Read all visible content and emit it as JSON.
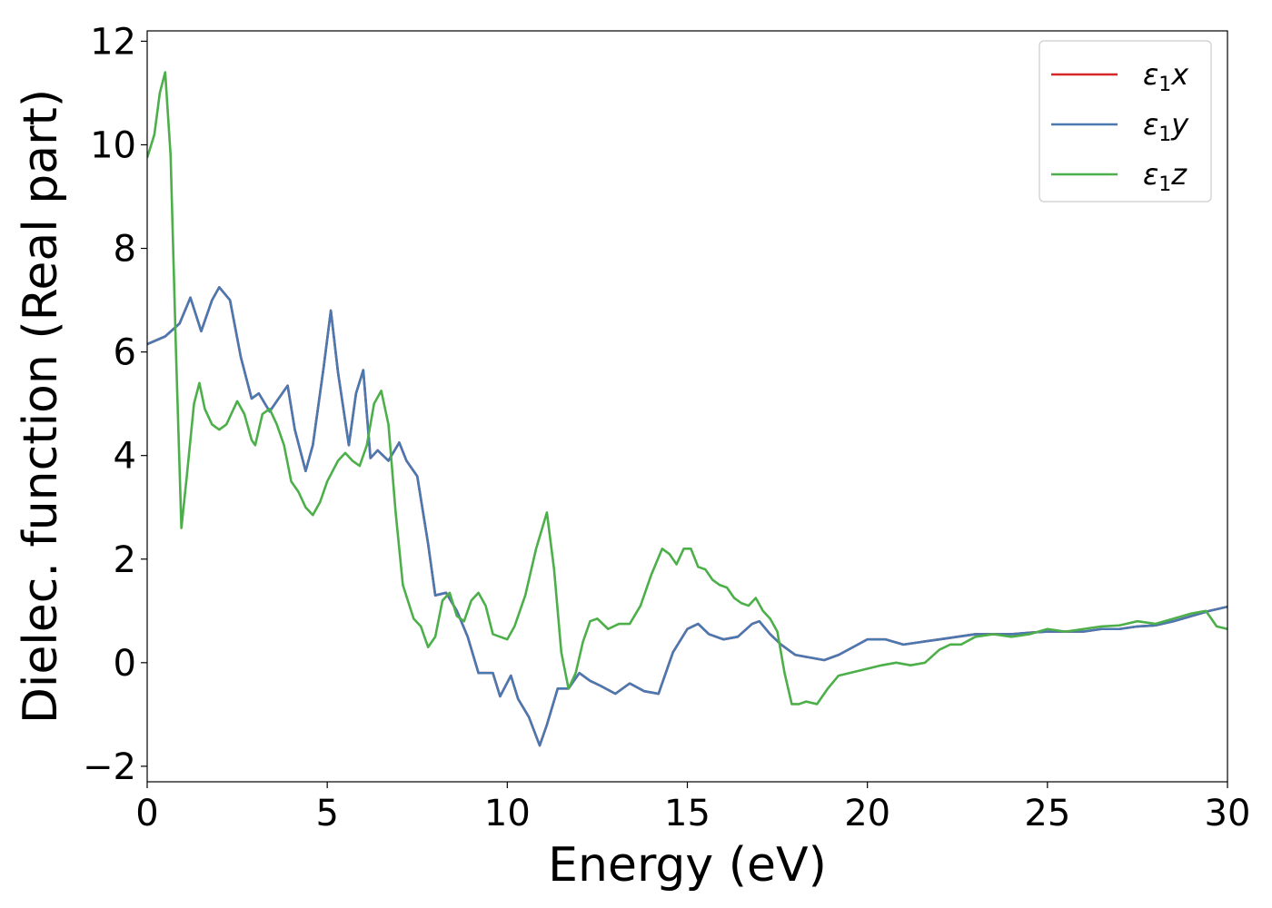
{
  "chart_data": {
    "type": "line",
    "title": "",
    "xlabel": "Energy (eV)",
    "ylabel": "Dielec. function (Real part)",
    "xlim": [
      0,
      30
    ],
    "ylim": [
      -2.3,
      12.2
    ],
    "xticks": [
      0,
      5,
      10,
      15,
      20,
      25,
      30
    ],
    "xtick_labels": [
      "0",
      "5",
      "10",
      "15",
      "20",
      "25",
      "30"
    ],
    "yticks": [
      -2,
      0,
      2,
      4,
      6,
      8,
      10,
      12
    ],
    "ytick_labels": [
      "−2",
      "0",
      "2",
      "4",
      "6",
      "8",
      "10",
      "12"
    ],
    "grid": false,
    "legend_position": "top-right",
    "series": [
      {
        "name": "ε1x",
        "legend_symbol": "ε",
        "legend_sub": "1",
        "legend_var": "x",
        "color": "#d62728",
        "x": [
          0,
          0.5,
          0.9,
          1.2,
          1.5,
          1.8,
          2.0,
          2.3,
          2.6,
          2.9,
          3.1,
          3.4,
          3.6,
          3.9,
          4.1,
          4.4,
          4.6,
          4.9,
          5.1,
          5.3,
          5.6,
          5.8,
          6.0,
          6.2,
          6.4,
          6.7,
          7.0,
          7.2,
          7.5,
          7.8,
          8.0,
          8.3,
          8.6,
          8.9,
          9.2,
          9.6,
          9.8,
          10.1,
          10.3,
          10.6,
          10.9,
          11.1,
          11.4,
          11.7,
          12.0,
          12.3,
          12.6,
          13.0,
          13.4,
          13.8,
          14.2,
          14.6,
          15.0,
          15.3,
          15.6,
          16.0,
          16.4,
          16.8,
          17.0,
          17.3,
          17.6,
          18.0,
          18.4,
          18.8,
          19.2,
          19.6,
          20.0,
          20.5,
          21.0,
          21.5,
          22.0,
          22.5,
          23.0,
          23.5,
          24.0,
          24.5,
          25.0,
          25.5,
          26.0,
          26.5,
          27.0,
          27.5,
          28.0,
          28.5,
          29.0,
          29.5,
          30.0
        ],
        "y": [
          6.15,
          6.3,
          6.55,
          7.05,
          6.4,
          7.0,
          7.25,
          7.0,
          5.9,
          5.1,
          5.2,
          4.85,
          5.05,
          5.35,
          4.5,
          3.7,
          4.2,
          5.7,
          6.8,
          5.6,
          4.2,
          5.2,
          5.65,
          3.95,
          4.1,
          3.9,
          4.25,
          3.9,
          3.6,
          2.3,
          1.3,
          1.35,
          1.0,
          0.5,
          -0.2,
          -0.2,
          -0.65,
          -0.25,
          -0.7,
          -1.05,
          -1.6,
          -1.2,
          -0.5,
          -0.5,
          -0.2,
          -0.35,
          -0.45,
          -0.6,
          -0.4,
          -0.55,
          -0.6,
          0.2,
          0.65,
          0.75,
          0.55,
          0.45,
          0.5,
          0.75,
          0.8,
          0.55,
          0.35,
          0.15,
          0.1,
          0.05,
          0.15,
          0.3,
          0.45,
          0.45,
          0.35,
          0.4,
          0.45,
          0.5,
          0.55,
          0.55,
          0.55,
          0.58,
          0.6,
          0.6,
          0.6,
          0.65,
          0.65,
          0.7,
          0.72,
          0.8,
          0.9,
          1.0,
          1.08
        ]
      },
      {
        "name": "ε1y",
        "legend_symbol": "ε",
        "legend_sub": "1",
        "legend_var": "y",
        "color": "#4a78b0",
        "x": [
          0,
          0.5,
          0.9,
          1.2,
          1.5,
          1.8,
          2.0,
          2.3,
          2.6,
          2.9,
          3.1,
          3.4,
          3.6,
          3.9,
          4.1,
          4.4,
          4.6,
          4.9,
          5.1,
          5.3,
          5.6,
          5.8,
          6.0,
          6.2,
          6.4,
          6.7,
          7.0,
          7.2,
          7.5,
          7.8,
          8.0,
          8.3,
          8.6,
          8.9,
          9.2,
          9.6,
          9.8,
          10.1,
          10.3,
          10.6,
          10.9,
          11.1,
          11.4,
          11.7,
          12.0,
          12.3,
          12.6,
          13.0,
          13.4,
          13.8,
          14.2,
          14.6,
          15.0,
          15.3,
          15.6,
          16.0,
          16.4,
          16.8,
          17.0,
          17.3,
          17.6,
          18.0,
          18.4,
          18.8,
          19.2,
          19.6,
          20.0,
          20.5,
          21.0,
          21.5,
          22.0,
          22.5,
          23.0,
          23.5,
          24.0,
          24.5,
          25.0,
          25.5,
          26.0,
          26.5,
          27.0,
          27.5,
          28.0,
          28.5,
          29.0,
          29.5,
          30.0
        ],
        "y": [
          6.15,
          6.3,
          6.55,
          7.05,
          6.4,
          7.0,
          7.25,
          7.0,
          5.9,
          5.1,
          5.2,
          4.85,
          5.05,
          5.35,
          4.5,
          3.7,
          4.2,
          5.7,
          6.8,
          5.6,
          4.2,
          5.2,
          5.65,
          3.95,
          4.1,
          3.9,
          4.25,
          3.9,
          3.6,
          2.3,
          1.3,
          1.35,
          1.0,
          0.5,
          -0.2,
          -0.2,
          -0.65,
          -0.25,
          -0.7,
          -1.05,
          -1.6,
          -1.2,
          -0.5,
          -0.5,
          -0.2,
          -0.35,
          -0.45,
          -0.6,
          -0.4,
          -0.55,
          -0.6,
          0.2,
          0.65,
          0.75,
          0.55,
          0.45,
          0.5,
          0.75,
          0.8,
          0.55,
          0.35,
          0.15,
          0.1,
          0.05,
          0.15,
          0.3,
          0.45,
          0.45,
          0.35,
          0.4,
          0.45,
          0.5,
          0.55,
          0.55,
          0.55,
          0.58,
          0.6,
          0.6,
          0.6,
          0.65,
          0.65,
          0.7,
          0.72,
          0.8,
          0.9,
          1.0,
          1.08
        ]
      },
      {
        "name": "ε1z",
        "legend_symbol": "ε",
        "legend_sub": "1",
        "legend_var": "z",
        "color": "#4daf4a",
        "x": [
          0,
          0.2,
          0.35,
          0.5,
          0.65,
          0.8,
          0.95,
          1.1,
          1.3,
          1.45,
          1.6,
          1.8,
          2.0,
          2.2,
          2.5,
          2.7,
          2.9,
          3.0,
          3.2,
          3.4,
          3.6,
          3.8,
          4.0,
          4.2,
          4.4,
          4.6,
          4.8,
          5.0,
          5.3,
          5.5,
          5.7,
          5.9,
          6.1,
          6.3,
          6.5,
          6.7,
          6.9,
          7.1,
          7.4,
          7.6,
          7.8,
          8.0,
          8.2,
          8.4,
          8.6,
          8.8,
          9.0,
          9.2,
          9.4,
          9.6,
          9.8,
          10.0,
          10.2,
          10.5,
          10.8,
          11.1,
          11.3,
          11.5,
          11.7,
          11.9,
          12.1,
          12.3,
          12.5,
          12.8,
          13.1,
          13.4,
          13.7,
          14.0,
          14.3,
          14.5,
          14.7,
          14.9,
          15.1,
          15.3,
          15.5,
          15.7,
          15.9,
          16.1,
          16.3,
          16.5,
          16.7,
          16.9,
          17.1,
          17.3,
          17.5,
          17.7,
          17.9,
          18.1,
          18.3,
          18.6,
          18.9,
          19.2,
          19.5,
          19.8,
          20.1,
          20.4,
          20.8,
          21.2,
          21.6,
          22.0,
          22.3,
          22.6,
          23.0,
          23.5,
          24.0,
          24.5,
          25.0,
          25.5,
          26.0,
          26.5,
          27.0,
          27.5,
          28.0,
          28.5,
          29.0,
          29.4,
          29.7,
          30.0
        ],
        "y": [
          9.75,
          10.2,
          11.0,
          11.4,
          9.8,
          6.0,
          2.6,
          3.6,
          5.0,
          5.4,
          4.9,
          4.6,
          4.5,
          4.6,
          5.05,
          4.8,
          4.3,
          4.2,
          4.8,
          4.9,
          4.6,
          4.2,
          3.5,
          3.3,
          3.0,
          2.85,
          3.1,
          3.5,
          3.9,
          4.05,
          3.9,
          3.8,
          4.2,
          5.0,
          5.25,
          4.6,
          2.9,
          1.5,
          0.85,
          0.7,
          0.3,
          0.5,
          1.2,
          1.35,
          0.9,
          0.8,
          1.2,
          1.35,
          1.1,
          0.55,
          0.5,
          0.45,
          0.7,
          1.3,
          2.2,
          2.9,
          1.8,
          0.2,
          -0.5,
          -0.2,
          0.4,
          0.8,
          0.85,
          0.65,
          0.75,
          0.75,
          1.1,
          1.7,
          2.2,
          2.1,
          1.9,
          2.2,
          2.2,
          1.85,
          1.8,
          1.6,
          1.5,
          1.45,
          1.25,
          1.15,
          1.1,
          1.25,
          1.0,
          0.85,
          0.6,
          -0.2,
          -0.8,
          -0.8,
          -0.75,
          -0.8,
          -0.5,
          -0.25,
          -0.2,
          -0.15,
          -0.1,
          -0.05,
          0.0,
          -0.05,
          0.0,
          0.25,
          0.35,
          0.35,
          0.5,
          0.55,
          0.5,
          0.55,
          0.65,
          0.6,
          0.65,
          0.7,
          0.72,
          0.8,
          0.75,
          0.85,
          0.95,
          1.0,
          0.7,
          0.65
        ]
      }
    ]
  }
}
